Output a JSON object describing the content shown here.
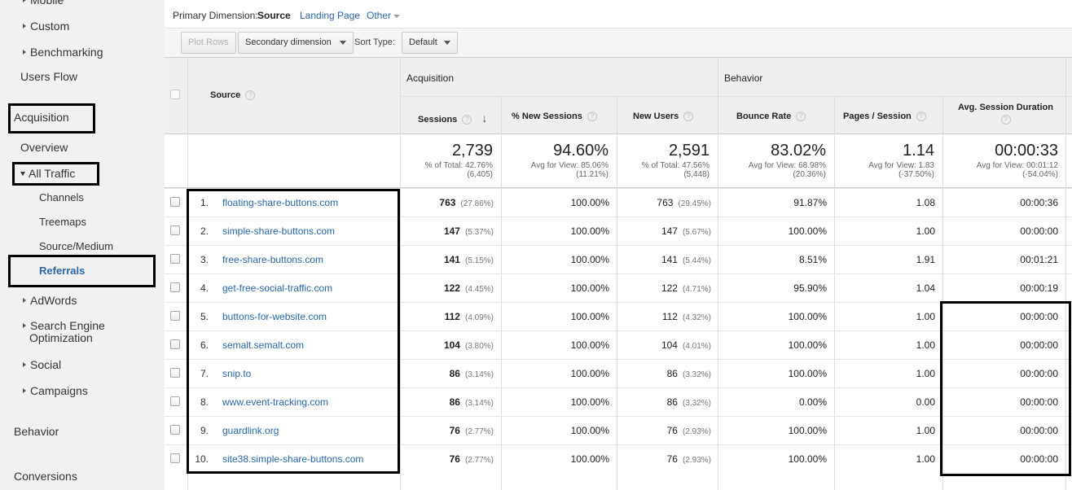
{
  "sidebar": {
    "items": [
      {
        "label": "Mobile",
        "arrow": "right"
      },
      {
        "label": "Custom",
        "arrow": "right"
      },
      {
        "label": "Benchmarking",
        "arrow": "right"
      },
      {
        "label": "Users Flow"
      },
      {
        "label": "Acquisition"
      },
      {
        "label": "Overview"
      },
      {
        "label": "All Traffic",
        "arrow": "down"
      },
      {
        "label": "Channels"
      },
      {
        "label": "Treemaps"
      },
      {
        "label": "Source/Medium"
      },
      {
        "label": "Referrals",
        "selected": true
      },
      {
        "label": "AdWords",
        "arrow": "right"
      },
      {
        "label": "Search Engine",
        "label2": "Optimization",
        "arrow": "right"
      },
      {
        "label": "Social",
        "arrow": "right"
      },
      {
        "label": "Campaigns",
        "arrow": "right"
      },
      {
        "label": "Behavior"
      },
      {
        "label": "Conversions"
      }
    ]
  },
  "dimensions": {
    "label": "Primary Dimension:",
    "current": "Source",
    "landing": "Landing Page",
    "other": "Other"
  },
  "toolbar": {
    "plot_rows": "Plot Rows",
    "secondary": "Secondary dimension",
    "sort_label": "Sort Type:",
    "sort_value": "Default"
  },
  "table": {
    "groups": {
      "acquisition": "Acquisition",
      "behavior": "Behavior"
    },
    "columns": {
      "source": "Source",
      "sessions": "Sessions",
      "new_sessions": "% New Sessions",
      "new_users": "New Users",
      "bounce": "Bounce Rate",
      "pages": "Pages / Session",
      "duration": "Avg. Session Duration"
    },
    "summary": {
      "sessions": {
        "value": "2,739",
        "line1": "% of Total: 42.76%",
        "line2": "(6,405)"
      },
      "new_sessions": {
        "value": "94.60%",
        "line1": "Avg for View: 85.06%",
        "line2": "(11.21%)"
      },
      "new_users": {
        "value": "2,591",
        "line1": "% of Total: 47.56%",
        "line2": "(5,448)"
      },
      "bounce": {
        "value": "83.02%",
        "line1": "Avg for View: 68.98%",
        "line2": "(20.36%)"
      },
      "pages": {
        "value": "1.14",
        "line1": "Avg for View: 1.83",
        "line2": "(-37.50%)"
      },
      "duration": {
        "value": "00:00:33",
        "line1": "Avg for View: 00:01:12",
        "line2": "(-54.04%)"
      }
    },
    "rows": [
      {
        "num": "1.",
        "source": "floating-share-buttons.com",
        "sessions": "763",
        "sessions_pct": "(27.86%)",
        "new_sessions": "100.00%",
        "new_users": "763",
        "new_users_pct": "(29.45%)",
        "bounce": "91.87%",
        "pages": "1.08",
        "duration": "00:00:36"
      },
      {
        "num": "2.",
        "source": "simple-share-buttons.com",
        "sessions": "147",
        "sessions_pct": "(5.37%)",
        "new_sessions": "100.00%",
        "new_users": "147",
        "new_users_pct": "(5.67%)",
        "bounce": "100.00%",
        "pages": "1.00",
        "duration": "00:00:00"
      },
      {
        "num": "3.",
        "source": "free-share-buttons.com",
        "sessions": "141",
        "sessions_pct": "(5.15%)",
        "new_sessions": "100.00%",
        "new_users": "141",
        "new_users_pct": "(5.44%)",
        "bounce": "8.51%",
        "pages": "1.91",
        "duration": "00:01:21"
      },
      {
        "num": "4.",
        "source": "get-free-social-traffic.com",
        "sessions": "122",
        "sessions_pct": "(4.45%)",
        "new_sessions": "100.00%",
        "new_users": "122",
        "new_users_pct": "(4.71%)",
        "bounce": "95.90%",
        "pages": "1.04",
        "duration": "00:00:19"
      },
      {
        "num": "5.",
        "source": "buttons-for-website.com",
        "sessions": "112",
        "sessions_pct": "(4.09%)",
        "new_sessions": "100.00%",
        "new_users": "112",
        "new_users_pct": "(4.32%)",
        "bounce": "100.00%",
        "pages": "1.00",
        "duration": "00:00:00"
      },
      {
        "num": "6.",
        "source": "semalt.semalt.com",
        "sessions": "104",
        "sessions_pct": "(3.80%)",
        "new_sessions": "100.00%",
        "new_users": "104",
        "new_users_pct": "(4.01%)",
        "bounce": "100.00%",
        "pages": "1.00",
        "duration": "00:00:00"
      },
      {
        "num": "7.",
        "source": "snip.to",
        "sessions": "86",
        "sessions_pct": "(3.14%)",
        "new_sessions": "100.00%",
        "new_users": "86",
        "new_users_pct": "(3.32%)",
        "bounce": "100.00%",
        "pages": "1.00",
        "duration": "00:00:00"
      },
      {
        "num": "8.",
        "source": "www.event-tracking.com",
        "sessions": "86",
        "sessions_pct": "(3.14%)",
        "new_sessions": "100.00%",
        "new_users": "86",
        "new_users_pct": "(3.32%)",
        "bounce": "0.00%",
        "pages": "0.00",
        "duration": "00:00:00"
      },
      {
        "num": "9.",
        "source": "guardlink.org",
        "sessions": "76",
        "sessions_pct": "(2.77%)",
        "new_sessions": "100.00%",
        "new_users": "76",
        "new_users_pct": "(2.93%)",
        "bounce": "100.00%",
        "pages": "1.00",
        "duration": "00:00:00"
      },
      {
        "num": "10.",
        "source": "site38.simple-share-buttons.com",
        "sessions": "76",
        "sessions_pct": "(2.77%)",
        "new_sessions": "100.00%",
        "new_users": "76",
        "new_users_pct": "(2.93%)",
        "bounce": "100.00%",
        "pages": "1.00",
        "duration": "00:00:00"
      }
    ]
  },
  "colors": {
    "link": "#2a65a8",
    "highlight_box": "#000000",
    "sidebar_bg": "#f1f1f1"
  }
}
